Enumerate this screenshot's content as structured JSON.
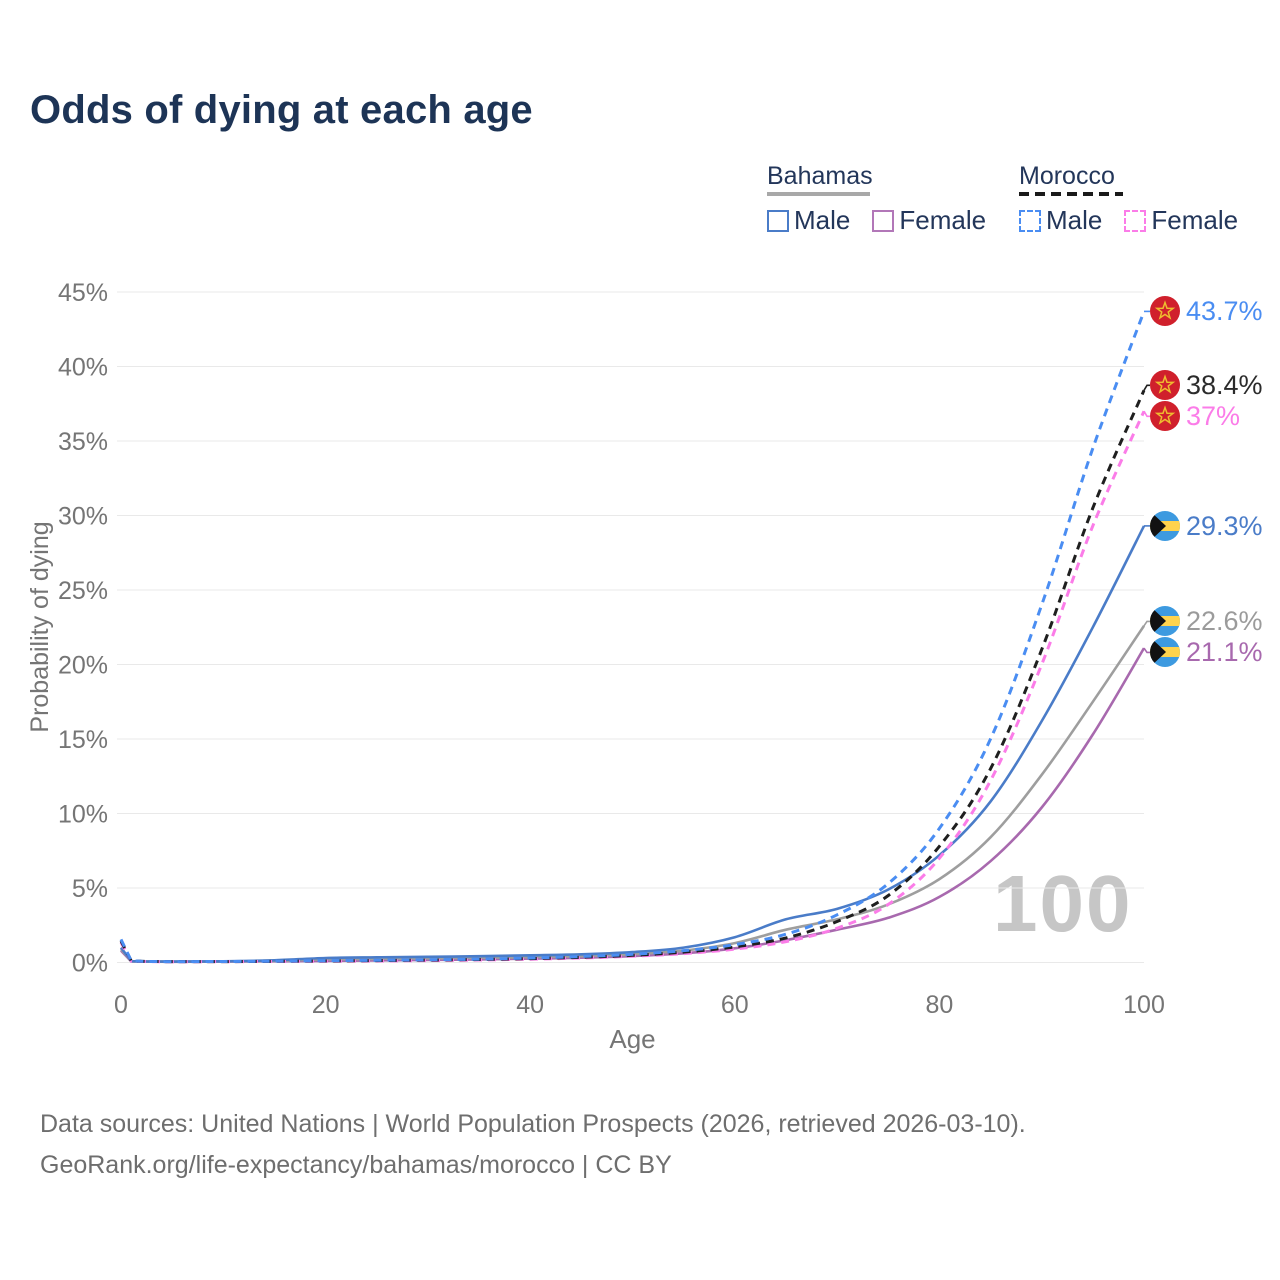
{
  "title": "Odds of dying at each age",
  "watermark_age": "100",
  "legend": {
    "groups": [
      {
        "label": "Bahamas",
        "line_style": "solid",
        "underline_color": "#a8a8a8",
        "items": [
          {
            "label": "Male",
            "color": "#4a7cc8"
          },
          {
            "label": "Female",
            "color": "#b277b8"
          }
        ]
      },
      {
        "label": "Morocco",
        "line_style": "dashed",
        "underline_color": "#1a1a1a",
        "items": [
          {
            "label": "Male",
            "color": "#4a8df2"
          },
          {
            "label": "Female",
            "color": "#fb7ce8"
          }
        ]
      }
    ]
  },
  "footer": {
    "line1": "Data sources: United Nations | World Population Prospects (2026, retrieved 2026-03-10).",
    "line2": "GeoRank.org/life-expectancy/bahamas/morocco | CC BY"
  },
  "colors": {
    "title_text": "#1d3456",
    "axis_text": "#757575",
    "gridline": "#e9e9e9",
    "watermark": "#c6c6c6",
    "morocco_flag_red": "#d0202c",
    "morocco_flag_star": "#eebd2f",
    "bahamas_flag_blue": "#3d9ae0",
    "bahamas_flag_yellow": "#ffd34d",
    "bahamas_flag_black": "#121212"
  },
  "chart_data": {
    "type": "line",
    "title": "Odds of dying at each age",
    "xlabel": "Age",
    "ylabel": "Probability of dying",
    "xlim": [
      0,
      100
    ],
    "ylim": [
      0,
      45
    ],
    "grid": "horizontal",
    "legend_position": "top-right",
    "x_ticks": [
      0,
      20,
      40,
      60,
      80,
      100
    ],
    "y_ticks_pct": [
      0,
      5,
      10,
      15,
      20,
      25,
      30,
      35,
      40,
      45
    ],
    "x": [
      0,
      1,
      2,
      5,
      10,
      15,
      20,
      25,
      30,
      35,
      40,
      45,
      50,
      55,
      60,
      65,
      70,
      75,
      80,
      85,
      90,
      95,
      100
    ],
    "series": [
      {
        "name": "Bahamas Female",
        "country": "Bahamas",
        "sex": "Female",
        "color": "#a869ae",
        "label_color": "#a869ae",
        "dash": false,
        "flag": "bahamas",
        "end_label": "21.1%",
        "values": [
          0.8,
          0.07,
          0.06,
          0.05,
          0.06,
          0.08,
          0.11,
          0.14,
          0.17,
          0.21,
          0.26,
          0.32,
          0.43,
          0.62,
          0.95,
          1.5,
          2.2,
          3.0,
          4.4,
          6.8,
          10.4,
          15.3,
          21.1
        ]
      },
      {
        "name": "Bahamas",
        "country": "Bahamas",
        "sex": "Both",
        "color": "#9e9e9e",
        "label_color": "#9b9b9b",
        "dash": false,
        "flag": "bahamas",
        "end_label": "22.6%",
        "values": [
          0.9,
          0.08,
          0.07,
          0.06,
          0.07,
          0.11,
          0.2,
          0.24,
          0.27,
          0.3,
          0.35,
          0.42,
          0.55,
          0.8,
          1.3,
          2.2,
          2.9,
          3.9,
          5.6,
          8.4,
          12.6,
          17.5,
          22.6
        ]
      },
      {
        "name": "Bahamas Male",
        "country": "Bahamas",
        "sex": "Male",
        "color": "#4a7cc8",
        "label_color": "#4a7cc8",
        "dash": false,
        "flag": "bahamas",
        "end_label": "29.3%",
        "values": [
          1.0,
          0.09,
          0.07,
          0.06,
          0.08,
          0.15,
          0.3,
          0.35,
          0.38,
          0.42,
          0.48,
          0.55,
          0.7,
          1.0,
          1.7,
          2.9,
          3.6,
          4.9,
          7.2,
          10.8,
          16.2,
          22.5,
          29.3
        ]
      },
      {
        "name": "Morocco Female",
        "country": "Morocco",
        "sex": "Female",
        "color": "#fb7ce8",
        "label_color": "#fb7ce8",
        "dash": true,
        "flag": "morocco",
        "end_label": "37%",
        "values": [
          1.35,
          0.1,
          0.07,
          0.05,
          0.06,
          0.07,
          0.08,
          0.1,
          0.13,
          0.17,
          0.22,
          0.3,
          0.42,
          0.6,
          0.9,
          1.4,
          2.3,
          3.9,
          7.0,
          12.2,
          20.0,
          29.3,
          37.0
        ]
      },
      {
        "name": "Morocco",
        "country": "Morocco",
        "sex": "Both",
        "color": "#1f1f1f",
        "label_color": "#2b2b2b",
        "dash": true,
        "flag": "morocco",
        "end_label": "38.4%",
        "values": [
          1.45,
          0.11,
          0.08,
          0.06,
          0.06,
          0.08,
          0.1,
          0.13,
          0.16,
          0.2,
          0.26,
          0.35,
          0.48,
          0.7,
          1.05,
          1.65,
          2.75,
          4.5,
          7.8,
          13.0,
          21.0,
          30.5,
          38.4
        ]
      },
      {
        "name": "Morocco Male",
        "country": "Morocco",
        "sex": "Male",
        "color": "#4a8df2",
        "label_color": "#4a8df2",
        "dash": true,
        "flag": "morocco",
        "end_label": "43.7%",
        "values": [
          1.55,
          0.12,
          0.08,
          0.06,
          0.07,
          0.09,
          0.12,
          0.15,
          0.18,
          0.23,
          0.3,
          0.4,
          0.55,
          0.8,
          1.2,
          1.9,
          3.2,
          5.3,
          9.0,
          15.0,
          24.0,
          34.5,
          43.7
        ]
      }
    ]
  }
}
